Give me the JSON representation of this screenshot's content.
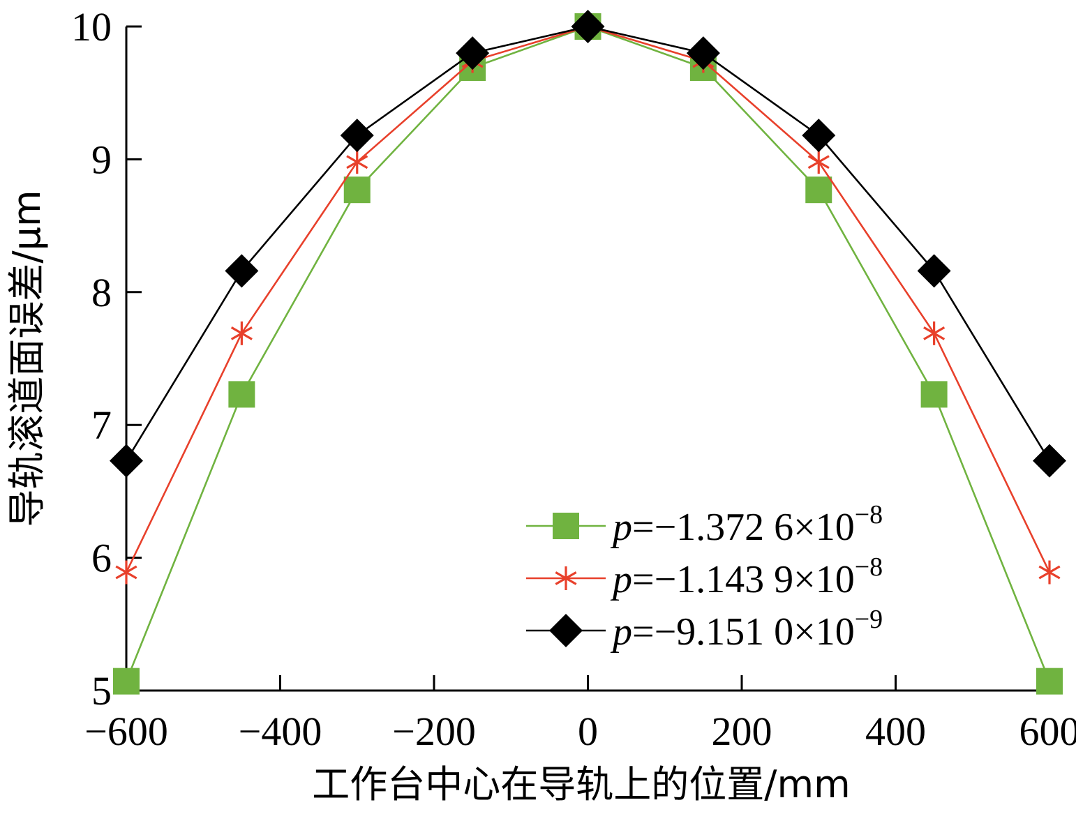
{
  "chart_data": {
    "type": "line",
    "xlabel": "工作台中心在导轨上的位置/mm",
    "ylabel": "导轨滚道面误差/μm",
    "xlim": [
      -600,
      600
    ],
    "ylim": [
      5,
      10
    ],
    "xticks": [
      -600,
      -400,
      -200,
      0,
      200,
      400,
      600
    ],
    "xtick_labels": [
      "−600",
      "−400",
      "−200",
      "0",
      "200",
      "400",
      "600"
    ],
    "yticks": [
      5,
      6,
      7,
      8,
      9,
      10
    ],
    "ytick_labels": [
      "5",
      "6",
      "7",
      "8",
      "9",
      "10"
    ],
    "grid": false,
    "legend_position": "lower-right",
    "x": [
      -600,
      -450,
      -300,
      -150,
      0,
      150,
      300,
      450,
      600
    ],
    "series": [
      {
        "legend": {
          "var": "p",
          "eq": "=",
          "value": "−1.372 6×10",
          "exp": "−8"
        },
        "marker": "square",
        "color": "#70b340",
        "marker_color": "#70b340",
        "values": [
          5.07,
          7.23,
          8.77,
          9.69,
          10.0,
          9.69,
          8.77,
          7.23,
          5.07
        ]
      },
      {
        "legend": {
          "var": "p",
          "eq": "=",
          "value": "−1.143 9×10",
          "exp": "−8"
        },
        "marker": "asterisk",
        "color": "#e8402b",
        "marker_color": "#e8402b",
        "values": [
          5.89,
          7.69,
          8.98,
          9.74,
          10.0,
          9.74,
          8.98,
          7.69,
          5.89
        ]
      },
      {
        "legend": {
          "var": "p",
          "eq": "=",
          "value": "−9.151 0×10",
          "exp": "−9"
        },
        "marker": "diamond",
        "color": "#000000",
        "marker_color": "#000000",
        "values": [
          6.73,
          8.16,
          9.18,
          9.8,
          10.0,
          9.8,
          9.18,
          8.16,
          6.73
        ]
      }
    ]
  }
}
